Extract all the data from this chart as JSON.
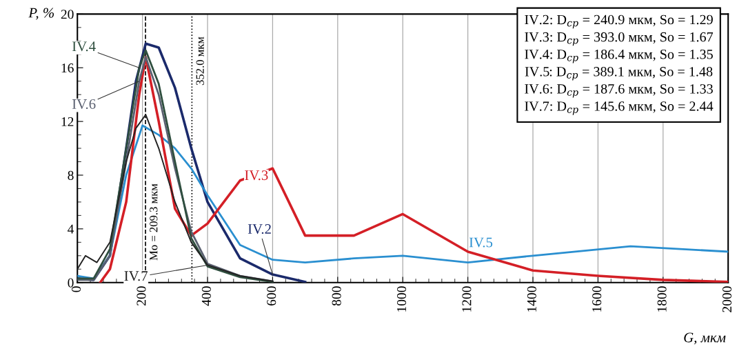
{
  "chart_data": {
    "type": "line",
    "xlabel": "G, мкм",
    "ylabel": "P, %",
    "xlim": [
      0,
      2000
    ],
    "xticks": [
      0,
      200,
      400,
      600,
      800,
      1000,
      1200,
      1400,
      1600,
      1800,
      2000
    ],
    "ylim": [
      0,
      20
    ],
    "yticks": [
      0,
      4,
      8,
      12,
      16,
      20
    ],
    "grid": "x",
    "legend": false,
    "marker": "none",
    "line_style": "solid",
    "series": [
      {
        "name": "IV.2",
        "color": "#1b2a6b",
        "x": [
          0,
          50,
          100,
          150,
          180,
          210,
          250,
          300,
          350,
          400,
          500,
          600,
          700
        ],
        "values": [
          0.3,
          0.2,
          2,
          10,
          15,
          17.8,
          17.5,
          14.5,
          10,
          6,
          1.8,
          0.6,
          0.05
        ]
      },
      {
        "name": "IV.3",
        "color": "#d41f26",
        "x": [
          70,
          100,
          150,
          190,
          210,
          250,
          300,
          350,
          400,
          500,
          600,
          700,
          850,
          1000,
          1200,
          1400,
          1600,
          1800,
          2000
        ],
        "values": [
          0,
          1,
          6,
          14,
          16.8,
          12,
          5.5,
          3.5,
          4.4,
          7.6,
          8.5,
          3.5,
          3.5,
          5.1,
          2.3,
          0.9,
          0.5,
          0.2,
          0.05
        ]
      },
      {
        "name": "IV.4",
        "color": "#2f4f3f",
        "x": [
          0,
          50,
          100,
          150,
          190,
          210,
          250,
          300,
          350,
          400,
          500,
          600
        ],
        "values": [
          0.3,
          0.3,
          2.5,
          10,
          16,
          17.3,
          14.8,
          9,
          3.3,
          1.2,
          0.4,
          0.05
        ]
      },
      {
        "name": "IV.5",
        "color": "#2a8fd0",
        "x": [
          0,
          50,
          100,
          150,
          200,
          250,
          300,
          350,
          400,
          500,
          600,
          700,
          850,
          1000,
          1200,
          1400,
          1700,
          2000
        ],
        "values": [
          0.5,
          0.3,
          2,
          8,
          11.7,
          11,
          10,
          8.5,
          6.5,
          2.8,
          1.7,
          1.5,
          1.8,
          2.0,
          1.5,
          2.0,
          2.7,
          2.3
        ]
      },
      {
        "name": "IV.6",
        "color": "#5a6070",
        "x": [
          0,
          50,
          100,
          150,
          190,
          210,
          250,
          300,
          350,
          400,
          500,
          600
        ],
        "values": [
          0.2,
          0.2,
          2,
          9,
          15,
          16.8,
          14,
          8.5,
          3.8,
          1.4,
          0.5,
          0.1
        ]
      },
      {
        "name": "IV.7",
        "color": "#222222",
        "x": [
          0,
          25,
          60,
          100,
          150,
          180,
          210,
          250,
          300,
          350,
          400,
          500,
          600
        ],
        "values": [
          1,
          2,
          1.5,
          3,
          9,
          11.5,
          12.5,
          10,
          6,
          3,
          1.3,
          0.5,
          0.1
        ]
      }
    ],
    "ref_lines": [
      {
        "axis": "x",
        "value": 209.3,
        "label": "Mo = 209.3 мкм",
        "line_style": "dashed"
      },
      {
        "axis": "x",
        "value": 352.0,
        "label": "352.0 мкм",
        "line_style": "dotted"
      }
    ],
    "annotations": [
      "IV.2: D$_{ср}$ = 240.9 мкм, So = 1.29",
      "IV.3: D$_{ср}$ = 393.0 мкм, So = 1.67",
      "IV.4: D$_{ср}$ = 186.4 мкм, So = 1.35",
      "IV.5: D$_{ср}$ = 389.1 мкм, So = 1.48",
      "IV.6: D$_{ср}$ = 187.6 мкм, So = 1.33",
      "IV.7: D$_{ср}$ = 145.6 мкм, So = 2.44"
    ]
  }
}
